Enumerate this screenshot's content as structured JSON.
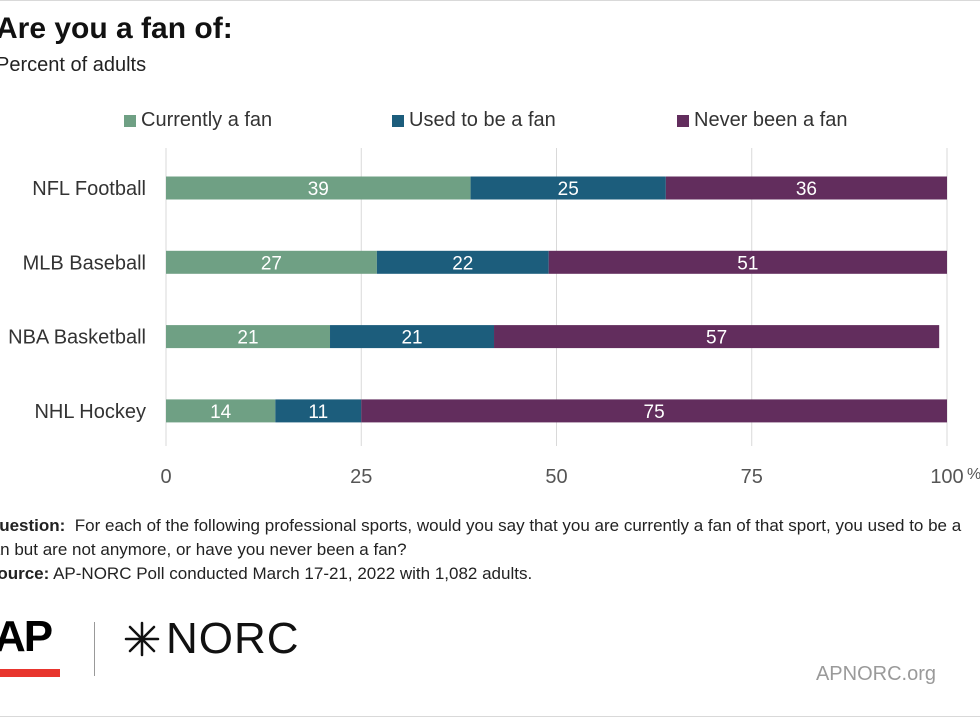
{
  "header": {
    "title": "Are you a fan of:",
    "subtitle": "Percent of adults"
  },
  "chart_data": {
    "type": "bar",
    "orientation": "horizontal",
    "stacked": true,
    "categories": [
      "NFL Football",
      "MLB Baseball",
      "NBA Basketball",
      "NHL Hockey"
    ],
    "series": [
      {
        "name": "Currently a fan",
        "color": "#6fa084",
        "values": [
          39,
          27,
          21,
          14
        ]
      },
      {
        "name": "Used to be a fan",
        "color": "#1c5d7c",
        "values": [
          25,
          22,
          21,
          11
        ]
      },
      {
        "name": "Never been a fan",
        "color": "#622d5d",
        "values": [
          36,
          51,
          57,
          75
        ]
      }
    ],
    "xlim": [
      0,
      100
    ],
    "xticks": [
      "0",
      "25",
      "50",
      "75",
      "100"
    ],
    "x_unit": "%",
    "grid": true,
    "legend": "top"
  },
  "notes": {
    "question_label": "Question:",
    "question_text": "For each of the following professional sports, would you say that you are currently a fan of that sport, you used to be a fan but are not anymore, or have you never been a fan?",
    "source_label": "Source:",
    "source_text": "AP-NORC Poll conducted March 17-21, 2022 with 1,082 adults."
  },
  "footer": {
    "ap_logo": "AP",
    "norc_logo": "NORC",
    "site": "APNORC.org"
  }
}
